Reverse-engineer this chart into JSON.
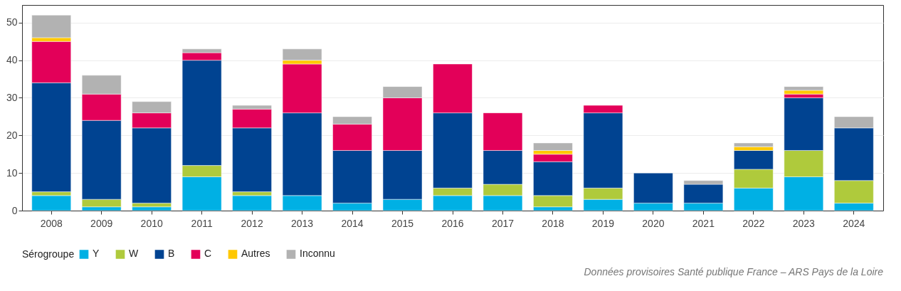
{
  "chart_data": {
    "type": "bar",
    "stacked": true,
    "legend_title": "Sérogroupe",
    "legend": "bottom",
    "grid": "y",
    "categories": [
      "2008",
      "2009",
      "2010",
      "2011",
      "2012",
      "2013",
      "2014",
      "2015",
      "2016",
      "2017",
      "2018",
      "2019",
      "2020",
      "2021",
      "2022",
      "2023",
      "2024"
    ],
    "series": [
      {
        "name": "Y",
        "color": "#00b0e4",
        "values": [
          4,
          1,
          1,
          9,
          4,
          4,
          2,
          3,
          4,
          4,
          1,
          3,
          2,
          2,
          6,
          9,
          2
        ]
      },
      {
        "name": "W",
        "color": "#afca3c",
        "values": [
          1,
          2,
          1,
          3,
          1,
          null,
          null,
          null,
          2,
          3,
          3,
          3,
          null,
          null,
          5,
          7,
          6
        ]
      },
      {
        "name": "B",
        "color": "#004391",
        "values": [
          29,
          21,
          20,
          28,
          17,
          22,
          14,
          13,
          20,
          9,
          9,
          20,
          8,
          5,
          5,
          14,
          14
        ]
      },
      {
        "name": "C",
        "color": "#e30059",
        "values": [
          11,
          7,
          4,
          2,
          5,
          13,
          7,
          14,
          13,
          10,
          2,
          2,
          null,
          null,
          null,
          1,
          null
        ]
      },
      {
        "name": "Autres",
        "color": "#ffc800",
        "values": [
          1,
          null,
          null,
          null,
          null,
          1,
          null,
          null,
          null,
          null,
          1,
          null,
          null,
          null,
          1,
          1,
          null
        ]
      },
      {
        "name": "Inconnu",
        "color": "#b2b2b2",
        "values": [
          6,
          5,
          3,
          1,
          1,
          3,
          2,
          3,
          null,
          null,
          2,
          null,
          null,
          1,
          1,
          1,
          3
        ]
      }
    ],
    "ylim": [
      0,
      54.7
    ],
    "yticks": [
      0,
      10,
      20,
      30,
      40,
      50
    ],
    "annotations": [
      "Données provisoires Santé publique France – ARS Pays de la Loire"
    ]
  }
}
